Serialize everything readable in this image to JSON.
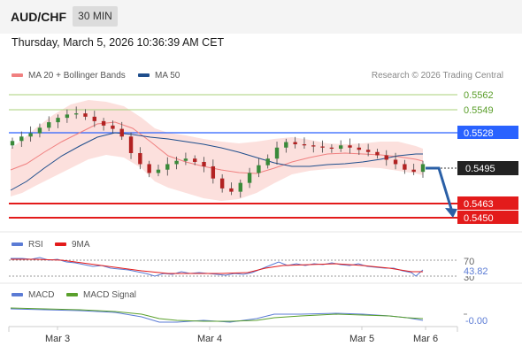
{
  "header": {
    "pair": "AUD/CHF",
    "timeframe": "30 MIN",
    "datetime": "Thursday, March 5, 2026 10:36:39 AM CET"
  },
  "legend": {
    "ma20": {
      "label": "MA 20 + Bollinger Bands",
      "color": "#f08080"
    },
    "ma50": {
      "label": "MA 50",
      "color": "#1f4e8c"
    },
    "copyright": "Research © 2026 Trading Central"
  },
  "price_levels": [
    {
      "value": "0.5562",
      "kind": "resistance",
      "color": "#7cb342"
    },
    {
      "value": "0.5549",
      "kind": "resistance",
      "color": "#7cb342"
    },
    {
      "value": "0.5528",
      "kind": "pivot",
      "color": "#2962ff"
    },
    {
      "value": "0.5495",
      "kind": "last",
      "color": "#222222"
    },
    {
      "value": "0.5463",
      "kind": "support",
      "color": "#e31b1b"
    },
    {
      "value": "0.5450",
      "kind": "support",
      "color": "#e31b1b"
    }
  ],
  "rsi": {
    "label": "RSI",
    "ma_label": "9MA",
    "rsi_color": "#5b7bd5",
    "ma_color": "#e31b1b",
    "level_70": "70",
    "level_30": "30",
    "value": "43.82"
  },
  "macd": {
    "label": "MACD",
    "signal_label": "MACD Signal",
    "macd_color": "#5b7bd5",
    "signal_color": "#5aa02c",
    "value": "-0.00"
  },
  "x_axis": {
    "ticks": [
      "Mar 3",
      "Mar 4",
      "Mar 5",
      "Mar 6"
    ]
  },
  "chart_data": {
    "type": "candlestick",
    "ylim": [
      0.544,
      0.557
    ],
    "close_series_approx": [
      0.5516,
      0.552,
      0.5523,
      0.5528,
      0.5533,
      0.5537,
      0.554,
      0.5541,
      0.5538,
      0.5534,
      0.553,
      0.5527,
      0.552,
      0.5505,
      0.5495,
      0.5487,
      0.549,
      0.5495,
      0.5498,
      0.55,
      0.5497,
      0.5493,
      0.5482,
      0.5473,
      0.547,
      0.5478,
      0.5487,
      0.5494,
      0.55,
      0.551,
      0.5515,
      0.5513,
      0.5512,
      0.5511,
      0.551,
      0.5509,
      0.5512,
      0.551,
      0.5508,
      0.5506,
      0.5503,
      0.5499,
      0.5495,
      0.549,
      0.5488,
      0.5495
    ],
    "last_price": 0.5495,
    "forecast_target": 0.545
  }
}
